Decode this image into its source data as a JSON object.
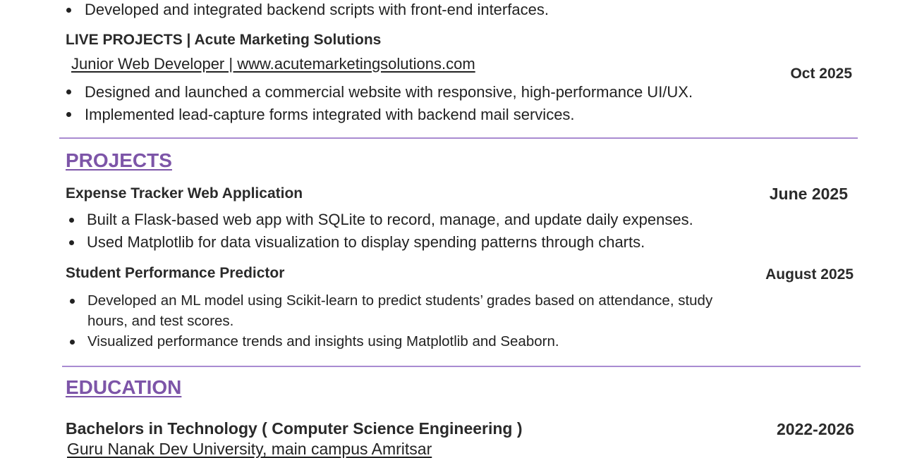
{
  "experience_tail": {
    "bullets": [
      "Developed and integrated backend scripts with front-end interfaces."
    ],
    "live_projects": {
      "title": "LIVE PROJECTS | Acute Marketing Solutions",
      "role_link": "Junior Web Developer | www.acutemarketingsolutions.com",
      "date": "Oct 2025",
      "bullets": [
        "Designed and launched a commercial website with responsive, high-performance UI/UX.",
        "Implemented lead-capture forms integrated with backend mail services."
      ]
    }
  },
  "projects": {
    "heading": "PROJECTS",
    "items": [
      {
        "title": "Expense Tracker Web Application",
        "date": "June 2025",
        "bullets": [
          "Built a Flask-based web app with SQLite to record, manage, and update daily expenses.",
          "Used Matplotlib for data visualization to display spending patterns through charts."
        ]
      },
      {
        "title": "Student Performance Predictor",
        "date": "August 2025",
        "bullets": [
          "Developed an ML model using Scikit-learn to predict students’ grades based on attendance, study",
          "hours, and test scores.",
          "Visualized performance trends and insights using Matplotlib and Seaborn."
        ]
      }
    ]
  },
  "education": {
    "heading": "EDUCATION",
    "degree": "Bachelors in Technology ( Computer Science Engineering )",
    "institution": "Guru Nanak Dev University, main campus Amritsar",
    "date": "2022-2026"
  },
  "colors": {
    "accent": "#7d55a8",
    "rule": "#a98bd1",
    "text": "#222222"
  }
}
